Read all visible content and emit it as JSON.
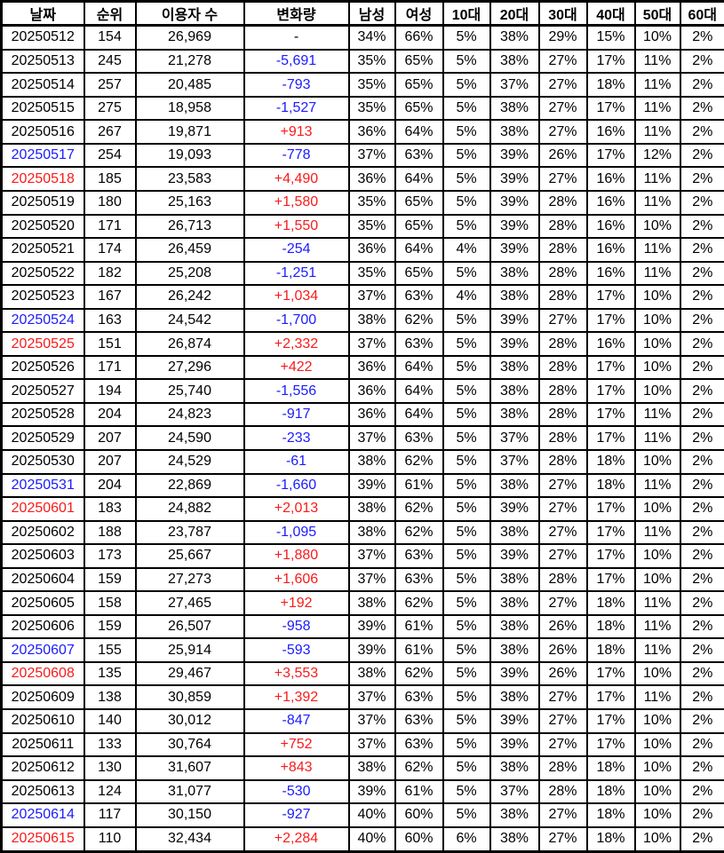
{
  "chart_data": {
    "type": "table",
    "columns": [
      {
        "key": "date",
        "label": "날짜"
      },
      {
        "key": "rank",
        "label": "순위"
      },
      {
        "key": "users",
        "label": "이용자 수"
      },
      {
        "key": "change",
        "label": "변화량"
      },
      {
        "key": "male",
        "label": "남성"
      },
      {
        "key": "female",
        "label": "여성"
      },
      {
        "key": "age10",
        "label": "10대"
      },
      {
        "key": "age20",
        "label": "20대"
      },
      {
        "key": "age30",
        "label": "30대"
      },
      {
        "key": "age40",
        "label": "40대"
      },
      {
        "key": "age50",
        "label": "50대"
      },
      {
        "key": "age60",
        "label": "60대"
      }
    ],
    "colors": {
      "default_text": "#000000",
      "saturday_date": "#1b1bff",
      "sunday_date": "#fa1a1a",
      "positive_change": "#fa1a1a",
      "negative_change": "#1b1bff",
      "border": "#000000",
      "background": "#ffffff"
    },
    "rows": [
      {
        "date": "20250512",
        "date_style": "normal",
        "rank": "154",
        "users": "26,969",
        "change": "-",
        "change_style": "none",
        "male": "34%",
        "female": "66%",
        "age10": "5%",
        "age20": "38%",
        "age30": "29%",
        "age40": "15%",
        "age50": "10%",
        "age60": "2%"
      },
      {
        "date": "20250513",
        "date_style": "normal",
        "rank": "245",
        "users": "21,278",
        "change": "-5,691",
        "change_style": "negative",
        "male": "35%",
        "female": "65%",
        "age10": "5%",
        "age20": "38%",
        "age30": "27%",
        "age40": "17%",
        "age50": "11%",
        "age60": "2%"
      },
      {
        "date": "20250514",
        "date_style": "normal",
        "rank": "257",
        "users": "20,485",
        "change": "-793",
        "change_style": "negative",
        "male": "35%",
        "female": "65%",
        "age10": "5%",
        "age20": "37%",
        "age30": "27%",
        "age40": "18%",
        "age50": "11%",
        "age60": "2%"
      },
      {
        "date": "20250515",
        "date_style": "normal",
        "rank": "275",
        "users": "18,958",
        "change": "-1,527",
        "change_style": "negative",
        "male": "35%",
        "female": "65%",
        "age10": "5%",
        "age20": "38%",
        "age30": "27%",
        "age40": "17%",
        "age50": "11%",
        "age60": "2%"
      },
      {
        "date": "20250516",
        "date_style": "normal",
        "rank": "267",
        "users": "19,871",
        "change": "+913",
        "change_style": "positive",
        "male": "36%",
        "female": "64%",
        "age10": "5%",
        "age20": "38%",
        "age30": "27%",
        "age40": "16%",
        "age50": "11%",
        "age60": "2%"
      },
      {
        "date": "20250517",
        "date_style": "saturday",
        "rank": "254",
        "users": "19,093",
        "change": "-778",
        "change_style": "negative",
        "male": "37%",
        "female": "63%",
        "age10": "5%",
        "age20": "39%",
        "age30": "26%",
        "age40": "17%",
        "age50": "12%",
        "age60": "2%"
      },
      {
        "date": "20250518",
        "date_style": "sunday",
        "rank": "185",
        "users": "23,583",
        "change": "+4,490",
        "change_style": "positive",
        "male": "36%",
        "female": "64%",
        "age10": "5%",
        "age20": "39%",
        "age30": "27%",
        "age40": "16%",
        "age50": "11%",
        "age60": "2%"
      },
      {
        "date": "20250519",
        "date_style": "normal",
        "rank": "180",
        "users": "25,163",
        "change": "+1,580",
        "change_style": "positive",
        "male": "35%",
        "female": "65%",
        "age10": "5%",
        "age20": "39%",
        "age30": "28%",
        "age40": "16%",
        "age50": "11%",
        "age60": "2%"
      },
      {
        "date": "20250520",
        "date_style": "normal",
        "rank": "171",
        "users": "26,713",
        "change": "+1,550",
        "change_style": "positive",
        "male": "35%",
        "female": "65%",
        "age10": "5%",
        "age20": "39%",
        "age30": "28%",
        "age40": "16%",
        "age50": "10%",
        "age60": "2%"
      },
      {
        "date": "20250521",
        "date_style": "normal",
        "rank": "174",
        "users": "26,459",
        "change": "-254",
        "change_style": "negative",
        "male": "36%",
        "female": "64%",
        "age10": "4%",
        "age20": "39%",
        "age30": "28%",
        "age40": "16%",
        "age50": "11%",
        "age60": "2%"
      },
      {
        "date": "20250522",
        "date_style": "normal",
        "rank": "182",
        "users": "25,208",
        "change": "-1,251",
        "change_style": "negative",
        "male": "35%",
        "female": "65%",
        "age10": "5%",
        "age20": "38%",
        "age30": "28%",
        "age40": "16%",
        "age50": "11%",
        "age60": "2%"
      },
      {
        "date": "20250523",
        "date_style": "normal",
        "rank": "167",
        "users": "26,242",
        "change": "+1,034",
        "change_style": "positive",
        "male": "37%",
        "female": "63%",
        "age10": "4%",
        "age20": "38%",
        "age30": "28%",
        "age40": "17%",
        "age50": "10%",
        "age60": "2%"
      },
      {
        "date": "20250524",
        "date_style": "saturday",
        "rank": "163",
        "users": "24,542",
        "change": "-1,700",
        "change_style": "negative",
        "male": "38%",
        "female": "62%",
        "age10": "5%",
        "age20": "39%",
        "age30": "27%",
        "age40": "17%",
        "age50": "10%",
        "age60": "2%"
      },
      {
        "date": "20250525",
        "date_style": "sunday",
        "rank": "151",
        "users": "26,874",
        "change": "+2,332",
        "change_style": "positive",
        "male": "37%",
        "female": "63%",
        "age10": "5%",
        "age20": "39%",
        "age30": "28%",
        "age40": "16%",
        "age50": "10%",
        "age60": "2%"
      },
      {
        "date": "20250526",
        "date_style": "normal",
        "rank": "171",
        "users": "27,296",
        "change": "+422",
        "change_style": "positive",
        "male": "36%",
        "female": "64%",
        "age10": "5%",
        "age20": "38%",
        "age30": "28%",
        "age40": "17%",
        "age50": "10%",
        "age60": "2%"
      },
      {
        "date": "20250527",
        "date_style": "normal",
        "rank": "194",
        "users": "25,740",
        "change": "-1,556",
        "change_style": "negative",
        "male": "36%",
        "female": "64%",
        "age10": "5%",
        "age20": "38%",
        "age30": "28%",
        "age40": "17%",
        "age50": "10%",
        "age60": "2%"
      },
      {
        "date": "20250528",
        "date_style": "normal",
        "rank": "204",
        "users": "24,823",
        "change": "-917",
        "change_style": "negative",
        "male": "36%",
        "female": "64%",
        "age10": "5%",
        "age20": "38%",
        "age30": "28%",
        "age40": "17%",
        "age50": "11%",
        "age60": "2%"
      },
      {
        "date": "20250529",
        "date_style": "normal",
        "rank": "207",
        "users": "24,590",
        "change": "-233",
        "change_style": "negative",
        "male": "37%",
        "female": "63%",
        "age10": "5%",
        "age20": "37%",
        "age30": "28%",
        "age40": "17%",
        "age50": "11%",
        "age60": "2%"
      },
      {
        "date": "20250530",
        "date_style": "normal",
        "rank": "207",
        "users": "24,529",
        "change": "-61",
        "change_style": "negative",
        "male": "38%",
        "female": "62%",
        "age10": "5%",
        "age20": "37%",
        "age30": "28%",
        "age40": "18%",
        "age50": "10%",
        "age60": "2%"
      },
      {
        "date": "20250531",
        "date_style": "saturday",
        "rank": "204",
        "users": "22,869",
        "change": "-1,660",
        "change_style": "negative",
        "male": "39%",
        "female": "61%",
        "age10": "5%",
        "age20": "38%",
        "age30": "27%",
        "age40": "18%",
        "age50": "11%",
        "age60": "2%"
      },
      {
        "date": "20250601",
        "date_style": "sunday",
        "rank": "183",
        "users": "24,882",
        "change": "+2,013",
        "change_style": "positive",
        "male": "38%",
        "female": "62%",
        "age10": "5%",
        "age20": "39%",
        "age30": "27%",
        "age40": "17%",
        "age50": "10%",
        "age60": "2%"
      },
      {
        "date": "20250602",
        "date_style": "normal",
        "rank": "188",
        "users": "23,787",
        "change": "-1,095",
        "change_style": "negative",
        "male": "38%",
        "female": "62%",
        "age10": "5%",
        "age20": "38%",
        "age30": "27%",
        "age40": "17%",
        "age50": "11%",
        "age60": "2%"
      },
      {
        "date": "20250603",
        "date_style": "normal",
        "rank": "173",
        "users": "25,667",
        "change": "+1,880",
        "change_style": "positive",
        "male": "37%",
        "female": "63%",
        "age10": "5%",
        "age20": "39%",
        "age30": "27%",
        "age40": "17%",
        "age50": "10%",
        "age60": "2%"
      },
      {
        "date": "20250604",
        "date_style": "normal",
        "rank": "159",
        "users": "27,273",
        "change": "+1,606",
        "change_style": "positive",
        "male": "37%",
        "female": "63%",
        "age10": "5%",
        "age20": "38%",
        "age30": "28%",
        "age40": "17%",
        "age50": "10%",
        "age60": "2%"
      },
      {
        "date": "20250605",
        "date_style": "normal",
        "rank": "158",
        "users": "27,465",
        "change": "+192",
        "change_style": "positive",
        "male": "38%",
        "female": "62%",
        "age10": "5%",
        "age20": "38%",
        "age30": "27%",
        "age40": "18%",
        "age50": "11%",
        "age60": "2%"
      },
      {
        "date": "20250606",
        "date_style": "normal",
        "rank": "159",
        "users": "26,507",
        "change": "-958",
        "change_style": "negative",
        "male": "39%",
        "female": "61%",
        "age10": "5%",
        "age20": "38%",
        "age30": "26%",
        "age40": "18%",
        "age50": "11%",
        "age60": "2%"
      },
      {
        "date": "20250607",
        "date_style": "saturday",
        "rank": "155",
        "users": "25,914",
        "change": "-593",
        "change_style": "negative",
        "male": "39%",
        "female": "61%",
        "age10": "5%",
        "age20": "38%",
        "age30": "26%",
        "age40": "18%",
        "age50": "11%",
        "age60": "2%"
      },
      {
        "date": "20250608",
        "date_style": "sunday",
        "rank": "135",
        "users": "29,467",
        "change": "+3,553",
        "change_style": "positive",
        "male": "38%",
        "female": "62%",
        "age10": "5%",
        "age20": "39%",
        "age30": "26%",
        "age40": "17%",
        "age50": "10%",
        "age60": "2%"
      },
      {
        "date": "20250609",
        "date_style": "normal",
        "rank": "138",
        "users": "30,859",
        "change": "+1,392",
        "change_style": "positive",
        "male": "37%",
        "female": "63%",
        "age10": "5%",
        "age20": "38%",
        "age30": "27%",
        "age40": "17%",
        "age50": "11%",
        "age60": "2%"
      },
      {
        "date": "20250610",
        "date_style": "normal",
        "rank": "140",
        "users": "30,012",
        "change": "-847",
        "change_style": "negative",
        "male": "37%",
        "female": "63%",
        "age10": "5%",
        "age20": "39%",
        "age30": "27%",
        "age40": "17%",
        "age50": "10%",
        "age60": "2%"
      },
      {
        "date": "20250611",
        "date_style": "normal",
        "rank": "133",
        "users": "30,764",
        "change": "+752",
        "change_style": "positive",
        "male": "37%",
        "female": "63%",
        "age10": "5%",
        "age20": "39%",
        "age30": "27%",
        "age40": "17%",
        "age50": "10%",
        "age60": "2%"
      },
      {
        "date": "20250612",
        "date_style": "normal",
        "rank": "130",
        "users": "31,607",
        "change": "+843",
        "change_style": "positive",
        "male": "38%",
        "female": "62%",
        "age10": "5%",
        "age20": "38%",
        "age30": "28%",
        "age40": "18%",
        "age50": "10%",
        "age60": "2%"
      },
      {
        "date": "20250613",
        "date_style": "normal",
        "rank": "124",
        "users": "31,077",
        "change": "-530",
        "change_style": "negative",
        "male": "39%",
        "female": "61%",
        "age10": "5%",
        "age20": "37%",
        "age30": "28%",
        "age40": "18%",
        "age50": "10%",
        "age60": "2%"
      },
      {
        "date": "20250614",
        "date_style": "saturday",
        "rank": "117",
        "users": "30,150",
        "change": "-927",
        "change_style": "negative",
        "male": "40%",
        "female": "60%",
        "age10": "5%",
        "age20": "38%",
        "age30": "27%",
        "age40": "18%",
        "age50": "10%",
        "age60": "2%"
      },
      {
        "date": "20250615",
        "date_style": "sunday",
        "rank": "110",
        "users": "32,434",
        "change": "+2,284",
        "change_style": "positive",
        "male": "40%",
        "female": "60%",
        "age10": "6%",
        "age20": "38%",
        "age30": "27%",
        "age40": "18%",
        "age50": "10%",
        "age60": "2%"
      }
    ]
  }
}
